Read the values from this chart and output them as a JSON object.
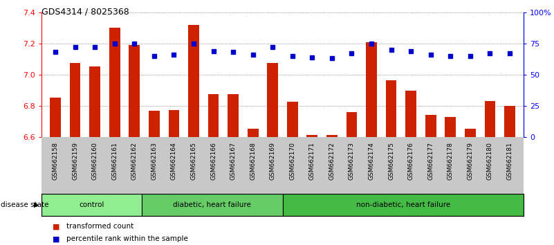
{
  "title": "GDS4314 / 8025368",
  "samples": [
    "GSM662158",
    "GSM662159",
    "GSM662160",
    "GSM662161",
    "GSM662162",
    "GSM662163",
    "GSM662164",
    "GSM662165",
    "GSM662166",
    "GSM662167",
    "GSM662168",
    "GSM662169",
    "GSM662170",
    "GSM662171",
    "GSM662172",
    "GSM662173",
    "GSM662174",
    "GSM662175",
    "GSM662176",
    "GSM662177",
    "GSM662178",
    "GSM662179",
    "GSM662180",
    "GSM662181"
  ],
  "red_values": [
    6.855,
    7.075,
    7.055,
    7.3,
    7.19,
    6.77,
    6.775,
    7.32,
    6.875,
    6.875,
    6.655,
    7.075,
    6.825,
    6.615,
    6.615,
    6.76,
    7.21,
    6.965,
    6.9,
    6.745,
    6.73,
    6.655,
    6.83,
    6.8
  ],
  "blue_values": [
    68,
    72,
    72,
    75,
    75,
    65,
    66,
    75,
    69,
    68,
    66,
    72,
    65,
    64,
    63,
    67,
    75,
    70,
    69,
    66,
    65,
    65,
    67,
    67
  ],
  "groups": [
    {
      "label": "control",
      "start": 0,
      "end": 5,
      "color": "#90EE90"
    },
    {
      "label": "diabetic, heart failure",
      "start": 5,
      "end": 12,
      "color": "#66CC66"
    },
    {
      "label": "non-diabetic, heart failure",
      "start": 12,
      "end": 24,
      "color": "#44BB44"
    }
  ],
  "ylim_left": [
    6.6,
    7.4
  ],
  "ylim_right": [
    0,
    100
  ],
  "yticks_left": [
    6.6,
    6.8,
    7.0,
    7.2,
    7.4
  ],
  "yticks_right": [
    0,
    25,
    50,
    75,
    100
  ],
  "ytick_labels_right": [
    "0",
    "25",
    "50",
    "75",
    "100%"
  ],
  "bar_color": "#CC2200",
  "dot_color": "#0000CC",
  "grid_color": "#555555",
  "disease_state_label": "disease state",
  "legend_red": "transformed count",
  "legend_blue": "percentile rank within the sample"
}
